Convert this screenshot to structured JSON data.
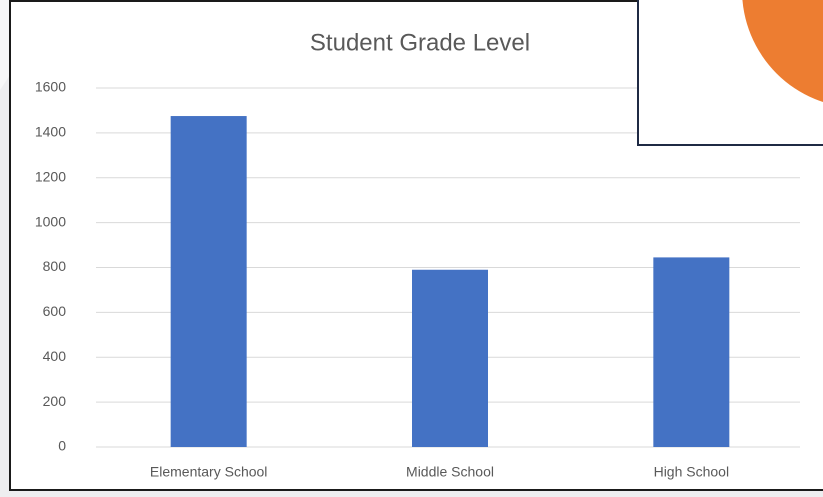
{
  "chart_data": {
    "type": "bar",
    "title": "Student Grade Level",
    "categories": [
      "Elementary School",
      "Middle School",
      "High School"
    ],
    "values": [
      1475,
      790,
      845
    ],
    "color": "#4472c4",
    "ylim": [
      0,
      1600
    ],
    "yticks": [
      0,
      200,
      400,
      600,
      800,
      1000,
      1200,
      1400,
      1600
    ],
    "grid": true
  }
}
